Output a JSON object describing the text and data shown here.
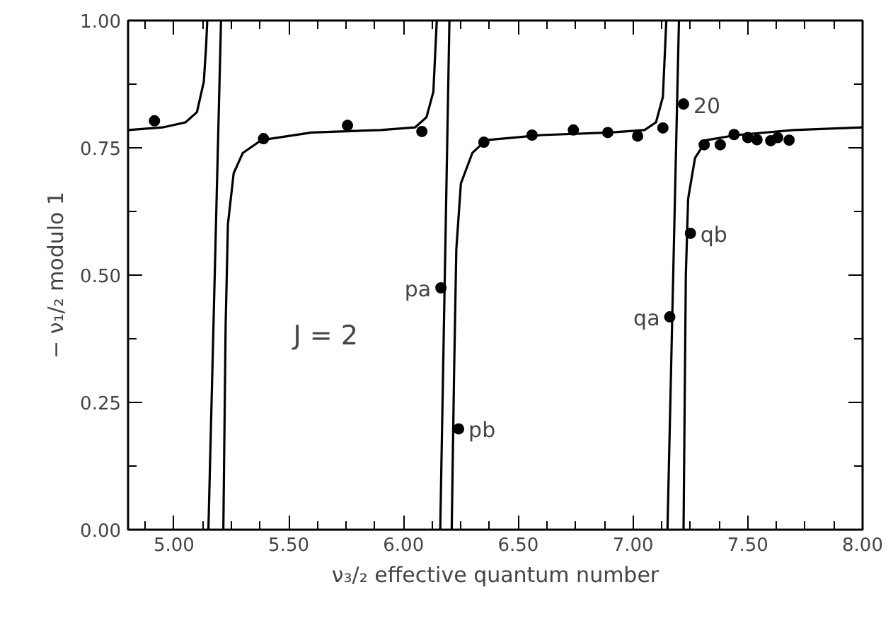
{
  "chart_data": {
    "type": "scatter",
    "xlabel": "ν₃/₂ effective quantum number",
    "ylabel": "− ν₁/₂ modulo 1",
    "xlim": [
      4.8,
      8.0
    ],
    "ylim": [
      0,
      1
    ],
    "xticks": [
      {
        "value": 4.875,
        "label": null
      },
      {
        "value": 5.0,
        "label": "5.00"
      },
      {
        "value": 5.125,
        "label": null
      },
      {
        "value": 5.25,
        "label": null
      },
      {
        "value": 5.375,
        "label": null
      },
      {
        "value": 5.5,
        "label": "5.50"
      },
      {
        "value": 5.625,
        "label": null
      },
      {
        "value": 5.75,
        "label": null
      },
      {
        "value": 5.875,
        "label": null
      },
      {
        "value": 6.0,
        "label": "6.00"
      },
      {
        "value": 6.125,
        "label": null
      },
      {
        "value": 6.25,
        "label": null
      },
      {
        "value": 6.375,
        "label": null
      },
      {
        "value": 6.5,
        "label": "6.50"
      },
      {
        "value": 6.625,
        "label": null
      },
      {
        "value": 6.75,
        "label": null
      },
      {
        "value": 6.875,
        "label": null
      },
      {
        "value": 7.0,
        "label": "7.00"
      },
      {
        "value": 7.125,
        "label": null
      },
      {
        "value": 7.25,
        "label": null
      },
      {
        "value": 7.375,
        "label": null
      },
      {
        "value": 7.5,
        "label": "7.50"
      },
      {
        "value": 7.625,
        "label": null
      },
      {
        "value": 7.75,
        "label": null
      },
      {
        "value": 7.875,
        "label": null
      },
      {
        "value": 8.0,
        "label": "8.00"
      }
    ],
    "yticks": [
      {
        "value": 0,
        "label": "0.00"
      },
      {
        "value": 0.125,
        "label": null
      },
      {
        "value": 0.25,
        "label": "0.25"
      },
      {
        "value": 0.375,
        "label": null
      },
      {
        "value": 0.5,
        "label": "0.50"
      },
      {
        "value": 0.625,
        "label": null
      },
      {
        "value": 0.75,
        "label": "0.75"
      },
      {
        "value": 0.875,
        "label": null
      },
      {
        "value": 1.0,
        "label": "1.00"
      }
    ],
    "grid": false,
    "marker": "circle",
    "series": [
      {
        "type": "line",
        "marker": "none",
        "color": "#000000",
        "line_style": "solid",
        "x": [
          4.8,
          4.95,
          5.05,
          5.1,
          5.13,
          5.14,
          5.145,
          null,
          5.15,
          5.205,
          null,
          5.215,
          5.225,
          5.235,
          5.26,
          5.3,
          5.38,
          5.6,
          5.9,
          6.05,
          6.1,
          6.13,
          6.145,
          null,
          6.16,
          6.2,
          null,
          6.21,
          6.22,
          6.23,
          6.25,
          6.3,
          6.36,
          6.6,
          6.9,
          7.05,
          7.1,
          7.13,
          7.145,
          null,
          7.15,
          7.2,
          null,
          7.22,
          7.23,
          7.24,
          7.27,
          7.32,
          7.45,
          7.7,
          8.0
        ],
        "values": [
          0.785,
          0.79,
          0.8,
          0.82,
          0.88,
          0.95,
          1.0,
          null,
          0,
          1.0,
          null,
          0,
          0.4,
          0.6,
          0.7,
          0.74,
          0.765,
          0.78,
          0.785,
          0.79,
          0.81,
          0.86,
          1.0,
          null,
          0,
          1.0,
          null,
          0,
          0.3,
          0.55,
          0.68,
          0.74,
          0.765,
          0.775,
          0.78,
          0.785,
          0.8,
          0.85,
          1.0,
          null,
          0,
          1.0,
          null,
          0,
          0.5,
          0.65,
          0.73,
          0.765,
          0.775,
          0.785,
          0.79
        ]
      },
      {
        "color": "#000000",
        "x": [
          4.915,
          5.39,
          5.756,
          6.08,
          6.163,
          6.24,
          6.35,
          6.56,
          6.74,
          6.89,
          7.02,
          7.13,
          7.22,
          7.16,
          7.25,
          7.31,
          7.38,
          7.44,
          7.5,
          7.54,
          7.6,
          7.63,
          7.68
        ],
        "values": [
          0.803,
          0.768,
          0.794,
          0.782,
          0.475,
          0.198,
          0.761,
          0.775,
          0.785,
          0.78,
          0.773,
          0.789,
          0.836,
          0.418,
          0.582,
          0.756,
          0.756,
          0.776,
          0.77,
          0.766,
          0.764,
          0.77,
          0.765
        ]
      }
    ],
    "annotations": [
      {
        "text": "pa",
        "x": 6.163,
        "y": 0.475
      },
      {
        "text": "pb",
        "x": 6.24,
        "y": 0.198
      },
      {
        "text": "qa",
        "x": 7.16,
        "y": 0.418
      },
      {
        "text": "qb",
        "x": 7.25,
        "y": 0.582
      },
      {
        "text": "20",
        "x": 7.22,
        "y": 0.836
      },
      "J = 2"
    ]
  }
}
